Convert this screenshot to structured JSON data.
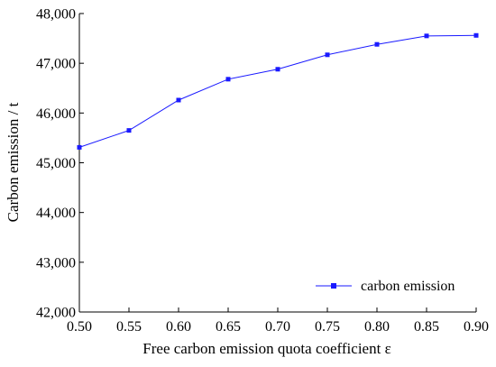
{
  "chart_data": {
    "type": "line",
    "title": "",
    "xlabel": "Free carbon emission quota coefficient ε",
    "ylabel": "Carbon emission / t",
    "xlim": [
      0.5,
      0.9
    ],
    "ylim": [
      42000,
      48000
    ],
    "x_ticks": [
      "0.50",
      "0.55",
      "0.60",
      "0.65",
      "0.70",
      "0.75",
      "0.80",
      "0.85",
      "0.90"
    ],
    "y_ticks": [
      "42,000",
      "43,000",
      "44,000",
      "45,000",
      "46,000",
      "47,000",
      "48,000"
    ],
    "grid": false,
    "legend_position": "bottom-right",
    "series": [
      {
        "name": "carbon emission",
        "color": "#1a1aff",
        "marker": "square",
        "x": [
          0.5,
          0.55,
          0.6,
          0.65,
          0.7,
          0.75,
          0.8,
          0.85,
          0.9
        ],
        "y": [
          45310,
          45650,
          46260,
          46680,
          46880,
          47170,
          47380,
          47550,
          47560
        ]
      }
    ]
  }
}
